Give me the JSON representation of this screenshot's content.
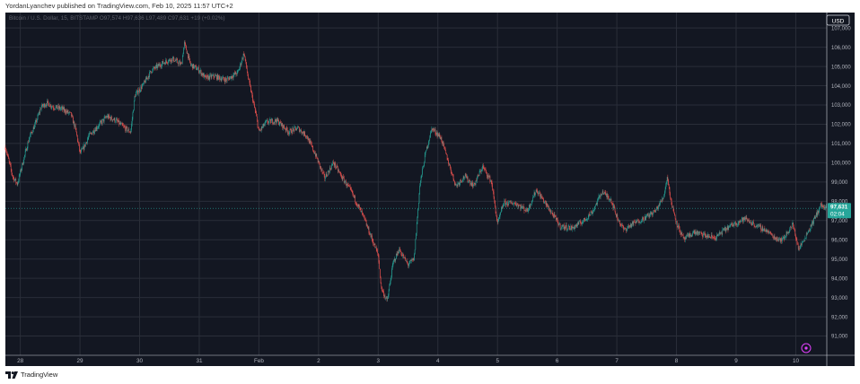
{
  "header": {
    "credit": "YordanLyanchev published on TradingView.com, Feb 10, 2025 11:57 UTC+2"
  },
  "footer": {
    "brand": "TradingView"
  },
  "colors": {
    "background": "#131722",
    "grid": "#2a2e39",
    "up": "#26a69a",
    "down": "#ef5350",
    "axis_text": "#b2b5be",
    "price_tag": "#26a69a"
  },
  "chart_data": {
    "type": "candlestick",
    "symbol": "Bitcoin / U.S. Dollar, 15, BITSTAMP",
    "ohlc_readout": "O97,574 H97,636 L97,489 C97,631 +19 (+0.02%)",
    "currency": "USD",
    "last_price": "97,631",
    "countdown": "02:04",
    "ylim": [
      90000,
      107800
    ],
    "y_ticks": [
      "91,000",
      "92,000",
      "93,000",
      "94,000",
      "95,000",
      "96,000",
      "97,000",
      "98,000",
      "99,000",
      "100,000",
      "101,000",
      "102,000",
      "103,000",
      "104,000",
      "105,000",
      "106,000",
      "107,000"
    ],
    "x_ticks": [
      "28",
      "29",
      "30",
      "31",
      "Feb",
      "2",
      "3",
      "4",
      "5",
      "6",
      "7",
      "8",
      "9",
      "10"
    ],
    "x_range_days": [
      -0.25,
      13.52
    ],
    "path": [
      [
        -0.25,
        100800
      ],
      [
        -0.13,
        99300
      ],
      [
        -0.05,
        98900
      ],
      [
        0.05,
        100100
      ],
      [
        0.15,
        101300
      ],
      [
        0.25,
        102000
      ],
      [
        0.35,
        102900
      ],
      [
        0.45,
        103100
      ],
      [
        0.55,
        102900
      ],
      [
        0.7,
        102800
      ],
      [
        0.85,
        102500
      ],
      [
        0.93,
        101700
      ],
      [
        1.0,
        100500
      ],
      [
        1.05,
        100700
      ],
      [
        1.15,
        101400
      ],
      [
        1.3,
        101900
      ],
      [
        1.45,
        102400
      ],
      [
        1.6,
        102200
      ],
      [
        1.75,
        101800
      ],
      [
        1.85,
        101600
      ],
      [
        1.92,
        103500
      ],
      [
        2.05,
        104000
      ],
      [
        2.2,
        104800
      ],
      [
        2.4,
        105200
      ],
      [
        2.55,
        105400
      ],
      [
        2.7,
        105100
      ],
      [
        2.75,
        106200
      ],
      [
        2.8,
        105700
      ],
      [
        2.85,
        105100
      ],
      [
        3.0,
        104800
      ],
      [
        3.1,
        104400
      ],
      [
        3.25,
        104500
      ],
      [
        3.45,
        104300
      ],
      [
        3.65,
        104700
      ],
      [
        3.75,
        105700
      ],
      [
        3.82,
        104400
      ],
      [
        3.95,
        102500
      ],
      [
        4.0,
        101600
      ],
      [
        4.12,
        102100
      ],
      [
        4.3,
        102200
      ],
      [
        4.5,
        101600
      ],
      [
        4.65,
        101800
      ],
      [
        4.8,
        101400
      ],
      [
        4.95,
        100400
      ],
      [
        5.1,
        99200
      ],
      [
        5.25,
        100000
      ],
      [
        5.4,
        99200
      ],
      [
        5.55,
        98500
      ],
      [
        5.75,
        97200
      ],
      [
        5.9,
        96000
      ],
      [
        6.0,
        95200
      ],
      [
        6.05,
        93500
      ],
      [
        6.15,
        92800
      ],
      [
        6.25,
        94800
      ],
      [
        6.35,
        95500
      ],
      [
        6.5,
        94700
      ],
      [
        6.6,
        95000
      ],
      [
        6.7,
        98900
      ],
      [
        6.8,
        100600
      ],
      [
        6.9,
        101800
      ],
      [
        7.05,
        101300
      ],
      [
        7.15,
        100300
      ],
      [
        7.3,
        98800
      ],
      [
        7.45,
        99300
      ],
      [
        7.6,
        98800
      ],
      [
        7.75,
        99800
      ],
      [
        7.9,
        99000
      ],
      [
        8.0,
        96800
      ],
      [
        8.1,
        97900
      ],
      [
        8.3,
        97900
      ],
      [
        8.5,
        97500
      ],
      [
        8.65,
        98600
      ],
      [
        8.8,
        97900
      ],
      [
        8.95,
        97200
      ],
      [
        9.05,
        96700
      ],
      [
        9.25,
        96600
      ],
      [
        9.45,
        97000
      ],
      [
        9.6,
        97500
      ],
      [
        9.75,
        98500
      ],
      [
        9.9,
        98100
      ],
      [
        10.0,
        97200
      ],
      [
        10.12,
        96500
      ],
      [
        10.25,
        96800
      ],
      [
        10.45,
        97100
      ],
      [
        10.65,
        97500
      ],
      [
        10.78,
        98200
      ],
      [
        10.85,
        99300
      ],
      [
        10.9,
        98100
      ],
      [
        11.0,
        96900
      ],
      [
        11.12,
        96000
      ],
      [
        11.3,
        96400
      ],
      [
        11.5,
        96200
      ],
      [
        11.65,
        96100
      ],
      [
        11.8,
        96500
      ],
      [
        11.95,
        96800
      ],
      [
        12.15,
        97100
      ],
      [
        12.35,
        96700
      ],
      [
        12.5,
        96500
      ],
      [
        12.65,
        96100
      ],
      [
        12.78,
        96000
      ],
      [
        12.95,
        96800
      ],
      [
        13.05,
        95500
      ],
      [
        13.15,
        96100
      ],
      [
        13.3,
        97000
      ],
      [
        13.42,
        97800
      ],
      [
        13.52,
        97600
      ]
    ]
  }
}
